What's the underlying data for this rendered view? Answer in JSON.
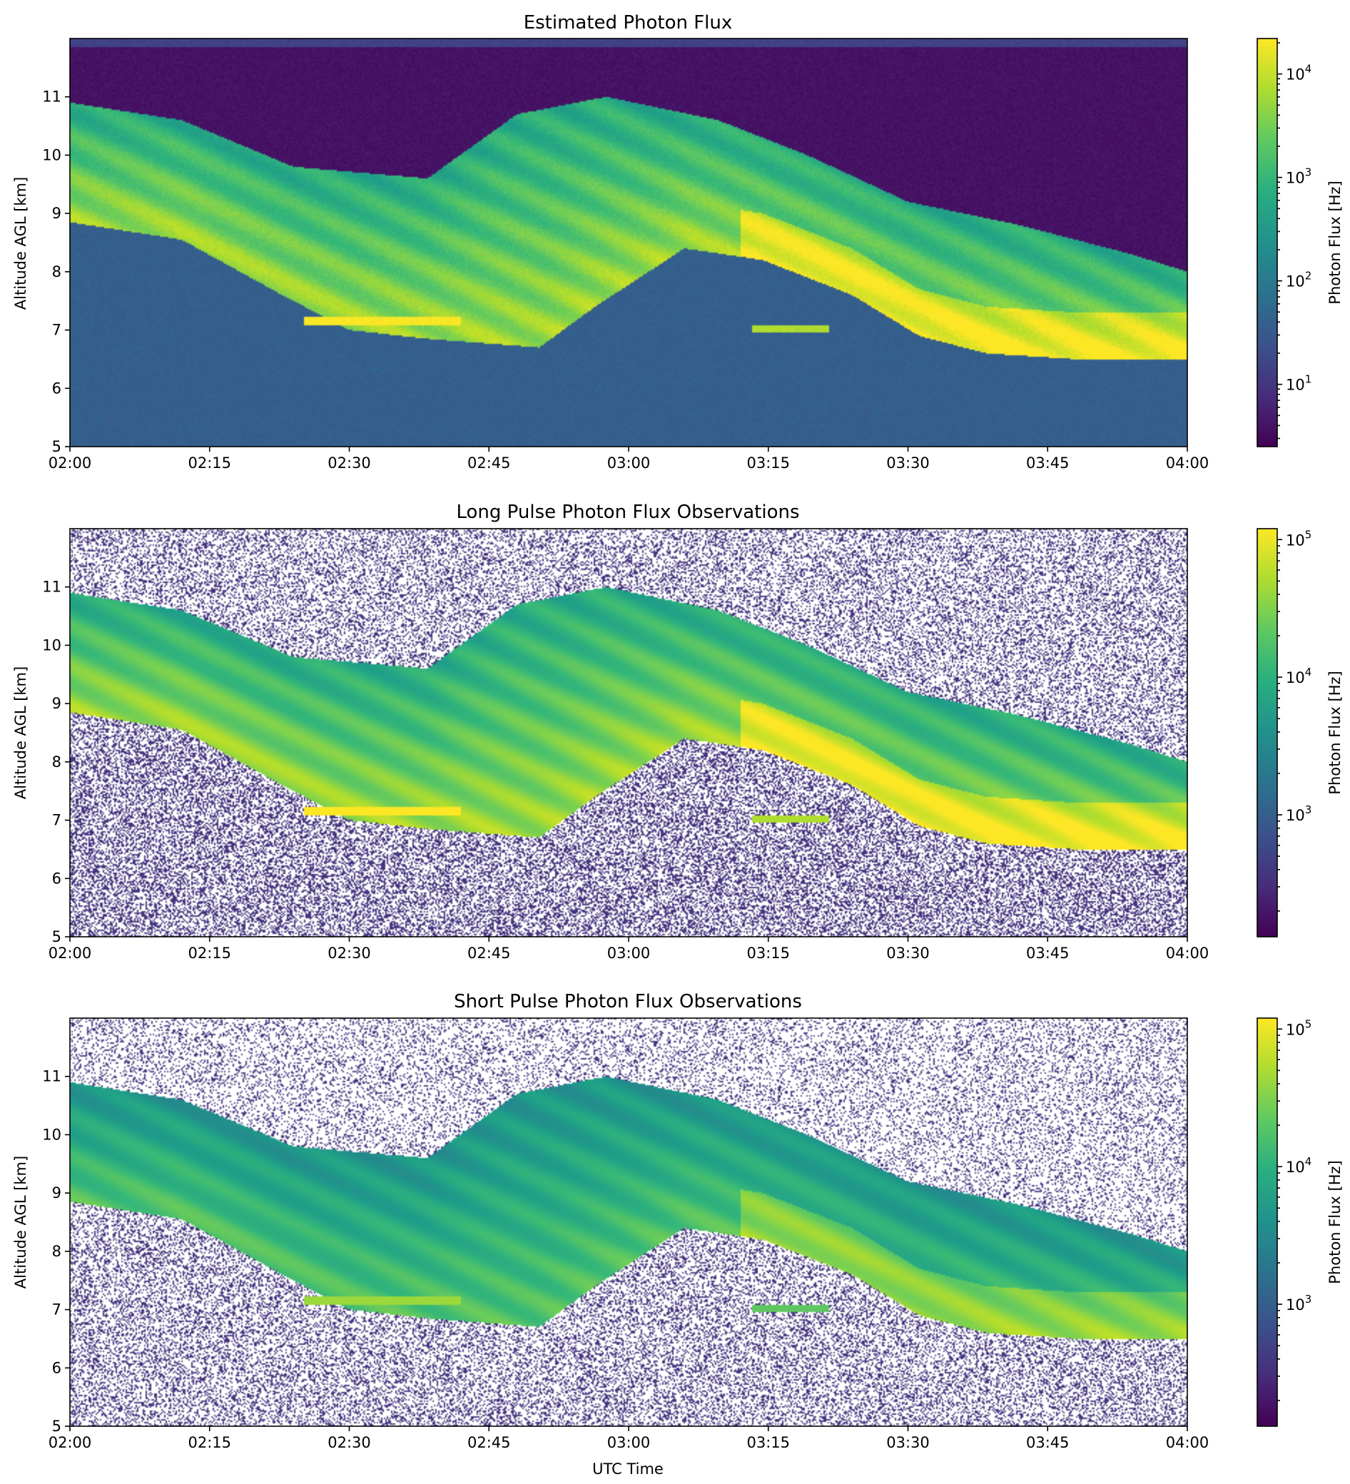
{
  "chart_data": [
    {
      "type": "heatmap",
      "title": "Estimated Photon Flux",
      "xlabel": "",
      "ylabel": "Altitude AGL [km]",
      "x_ticks": [
        "02:00",
        "02:15",
        "02:30",
        "02:45",
        "03:00",
        "03:15",
        "03:30",
        "03:45",
        "04:00"
      ],
      "xlim": [
        "02:00",
        "04:00"
      ],
      "y_ticks": [
        5,
        6,
        7,
        8,
        9,
        10,
        11
      ],
      "ylim": [
        5,
        12
      ],
      "colorbar": {
        "label": "Photon Flux [Hz]",
        "scale": "log",
        "range": [
          2.5,
          22000
        ],
        "ticks": [
          {
            "exp": 1,
            "label": "10"
          },
          {
            "exp": 2,
            "label": "10"
          },
          {
            "exp": 3,
            "label": "10"
          },
          {
            "exp": 4,
            "label": "10"
          }
        ],
        "colormap": "viridis"
      },
      "noise": "smooth"
    },
    {
      "type": "heatmap",
      "title": "Long Pulse Photon Flux Observations",
      "xlabel": "",
      "ylabel": "Altitude AGL [km]",
      "x_ticks": [
        "02:00",
        "02:15",
        "02:30",
        "02:45",
        "03:00",
        "03:15",
        "03:30",
        "03:45",
        "04:00"
      ],
      "xlim": [
        "02:00",
        "04:00"
      ],
      "y_ticks": [
        5,
        6,
        7,
        8,
        9,
        10,
        11
      ],
      "ylim": [
        5,
        12
      ],
      "colorbar": {
        "label": "Photon Flux [Hz]",
        "scale": "log",
        "range": [
          130,
          120000
        ],
        "ticks": [
          {
            "exp": 3,
            "label": "10"
          },
          {
            "exp": 4,
            "label": "10"
          },
          {
            "exp": 5,
            "label": "10"
          }
        ],
        "colormap": "viridis"
      },
      "noise": "speckle"
    },
    {
      "type": "heatmap",
      "title": "Short Pulse Photon Flux Observations",
      "xlabel": "UTC Time",
      "ylabel": "Altitude AGL [km]",
      "x_ticks": [
        "02:00",
        "02:15",
        "02:30",
        "02:45",
        "03:00",
        "03:15",
        "03:30",
        "03:45",
        "04:00"
      ],
      "xlim": [
        "02:00",
        "04:00"
      ],
      "y_ticks": [
        5,
        6,
        7,
        8,
        9,
        10,
        11
      ],
      "ylim": [
        5,
        12
      ],
      "colorbar": {
        "label": "Photon Flux [Hz]",
        "scale": "log",
        "range": [
          130,
          120000
        ],
        "ticks": [
          {
            "exp": 3,
            "label": "10"
          },
          {
            "exp": 4,
            "label": "10"
          },
          {
            "exp": 5,
            "label": "10"
          }
        ],
        "colormap": "viridis"
      },
      "noise": "speckle-heavy"
    }
  ]
}
